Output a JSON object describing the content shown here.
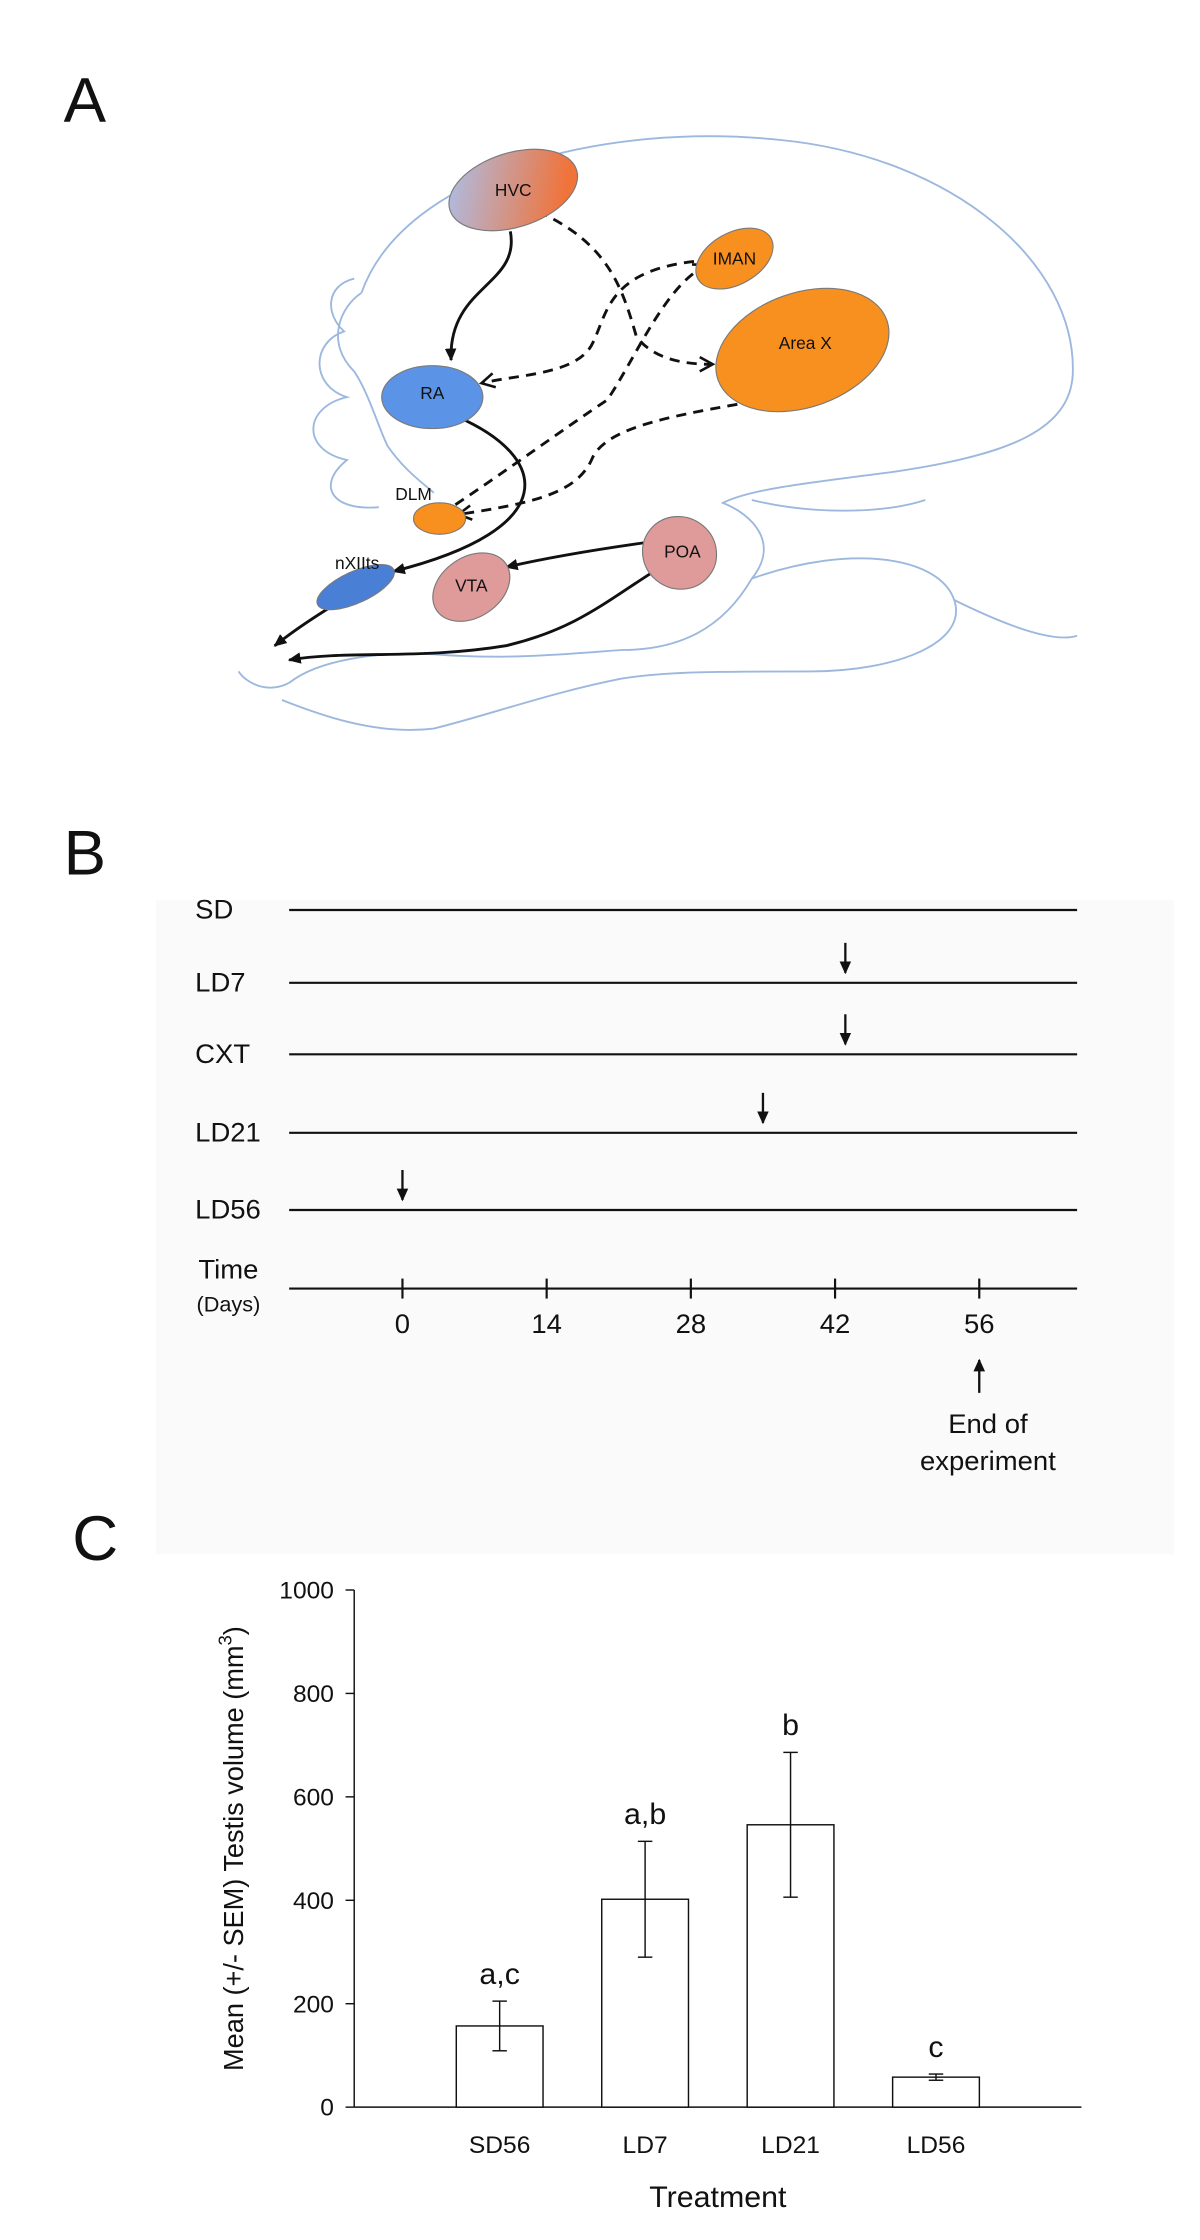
{
  "panel_labels": [
    "A",
    "B",
    "C"
  ],
  "panel_a": {
    "nodes": [
      "HVC",
      "IMAN",
      "Area X",
      "RA",
      "DLM",
      "nXIIts",
      "VTA",
      "POA"
    ]
  },
  "panel_b": {
    "rows": [
      {
        "label": "SD"
      },
      {
        "label": "LD7",
        "arrow_day": 43
      },
      {
        "label": "CXT",
        "arrow_day": 43
      },
      {
        "label": "LD21",
        "arrow_day": 35
      },
      {
        "label": "LD56",
        "arrow_day": 0
      }
    ],
    "time_label": "Time",
    "time_unit": "(Days)",
    "xlim": [
      -11,
      65.5
    ],
    "time_ticks": [
      0,
      14,
      28,
      42,
      56
    ],
    "end_day": 56,
    "end_label": [
      "End of",
      "experiment"
    ]
  },
  "chart_data": {
    "type": "bar",
    "categories": [
      "SD56",
      "LD7",
      "LD21",
      "LD56"
    ],
    "values": [
      157,
      402,
      546,
      58
    ],
    "errors": [
      48,
      112,
      140,
      6
    ],
    "annotations": [
      "a,c",
      "a,b",
      "b",
      "c"
    ],
    "color": "#ffffff",
    "x_label": "Treatment",
    "y_label": [
      "Mean (+/- SEM) Testis volume (mm",
      "3",
      ")"
    ],
    "ylim": [
      0,
      1000
    ],
    "yticks": [
      0,
      200,
      400,
      600,
      800,
      1000
    ],
    "grid": false
  }
}
